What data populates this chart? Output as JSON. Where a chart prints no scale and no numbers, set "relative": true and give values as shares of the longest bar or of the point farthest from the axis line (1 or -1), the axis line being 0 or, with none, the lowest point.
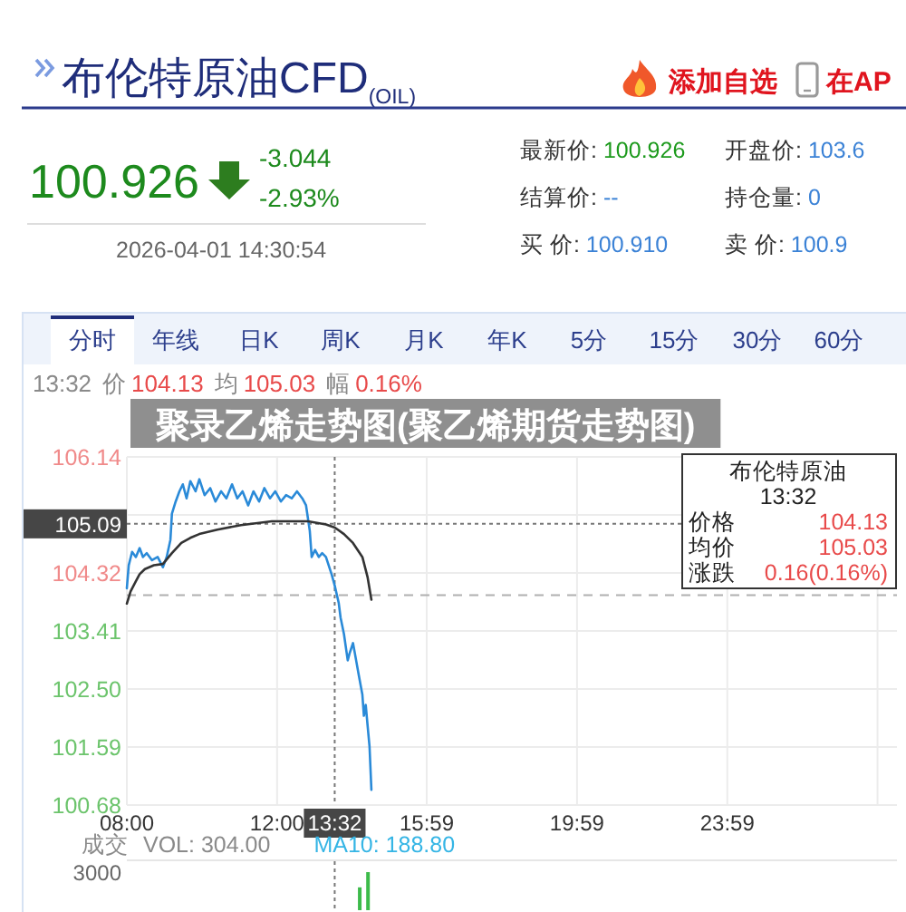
{
  "chart_data": [
    {
      "type": "other",
      "title": "布伦特原油CFD$_{(OIL)}$",
      "annotations": [
        "100.926",
        "-3.044",
        "-2.93%",
        "2026-04-01 14:30:54",
        "添加自选",
        "在AP",
        "最新价: 100.926",
        "结算价: --",
        "买 价: 100.910",
        "开盘价: 103.6",
        "持仓量: 0",
        "卖 价: 100.9"
      ]
    },
    {
      "type": "line",
      "title": "聚录乙烯走势图(聚乙烯期货走势图)",
      "series": [
        {
          "color": "#2a8ad8",
          "x": [
            8.0,
            8.05,
            8.14,
            8.24,
            8.34,
            8.43,
            8.53,
            8.67,
            8.82,
            8.96,
            9.06,
            9.16,
            9.2,
            9.3,
            9.4,
            9.49,
            9.59,
            9.69,
            9.83,
            9.93,
            10.07,
            10.22,
            10.36,
            10.51,
            10.65,
            10.8,
            10.94,
            11.08,
            11.23,
            11.37,
            11.52,
            11.66,
            11.81,
            11.95,
            12.1,
            12.24,
            12.39,
            12.53,
            12.67,
            12.77,
            12.87,
            12.92,
            13.01,
            13.11,
            13.2,
            13.3,
            13.45,
            13.53,
            13.64,
            13.69,
            13.78,
            13.88,
            13.93,
            14.02,
            14.07,
            14.17,
            14.27,
            14.31,
            14.36,
            14.41,
            14.46,
            14.51
          ],
          "values": [
            104.08,
            104.44,
            104.65,
            104.57,
            104.71,
            104.57,
            104.63,
            104.52,
            104.57,
            104.41,
            104.57,
            104.84,
            105.25,
            105.44,
            105.6,
            105.71,
            105.49,
            105.76,
            105.6,
            105.79,
            105.54,
            105.65,
            105.44,
            105.6,
            105.49,
            105.71,
            105.49,
            105.6,
            105.38,
            105.6,
            105.44,
            105.65,
            105.49,
            105.6,
            105.44,
            105.54,
            105.49,
            105.6,
            105.49,
            105.38,
            104.98,
            104.57,
            104.68,
            104.57,
            104.63,
            104.57,
            104.3,
            104.13,
            103.85,
            103.62,
            103.36,
            102.95,
            103.06,
            103.22,
            103.06,
            102.73,
            102.41,
            102.08,
            102.25,
            101.92,
            101.6,
            100.92
          ]
        },
        {
          "color": "#333333",
          "x": [
            8.0,
            8.1,
            8.24,
            8.34,
            8.48,
            8.72,
            8.96,
            9.2,
            9.45,
            9.69,
            9.93,
            10.41,
            11.04,
            11.86,
            12.82,
            13.3,
            13.54,
            13.78,
            14.02,
            14.27,
            14.41,
            14.51
          ],
          "values": [
            103.84,
            104.03,
            104.19,
            104.3,
            104.38,
            104.44,
            104.46,
            104.63,
            104.79,
            104.87,
            104.93,
            105.0,
            105.07,
            105.13,
            105.13,
            105.08,
            105.03,
            104.93,
            104.79,
            104.57,
            104.25,
            103.9
          ]
        }
      ],
      "xlim": [
        8,
        28.5
      ],
      "ylim": [
        100.68,
        106.14
      ],
      "xticks": [
        {
          "value": 8,
          "label": "08:00"
        },
        {
          "value": 12,
          "label": "12:00"
        },
        {
          "value": 15.9833,
          "label": "15:59"
        },
        {
          "value": 19.9833,
          "label": "19:59"
        },
        {
          "value": 23.9833,
          "label": "23:59"
        },
        {
          "value": 27.9833,
          "label": null
        }
      ],
      "yticks": [
        100.68,
        101.59,
        {
          "value": 102.5,
          "label": "102.50"
        },
        103.41,
        104.32,
        {
          "value": 105.23,
          "label": null
        },
        106.14
      ],
      "grid": true,
      "ref_lines": [
        {
          "axis": "y",
          "value": 103.97,
          "line_style": "dashed"
        },
        {
          "axis": "x",
          "value": 13.5333,
          "line_style": "dotted"
        },
        {
          "axis": "y",
          "value": 105.09,
          "label": "105.09",
          "line_style": "dotted"
        }
      ],
      "annotations": [
        "分时",
        "年线",
        "日K",
        "周K",
        "月K",
        "年K",
        "5分",
        "15分",
        "30分",
        "60分",
        "13:32",
        "价",
        "104.13",
        "均",
        "105.03",
        "幅",
        "0.16%",
        "布伦特原油",
        "13:32",
        "价格",
        "104.13",
        "均价",
        "105.03",
        "涨跌",
        "0.16(0.16%)",
        "13:32"
      ]
    },
    {
      "type": "bar",
      "title": "成交",
      "x": [
        14.2,
        14.42
      ],
      "values": [
        0.6,
        1
      ],
      "color": "#3dbb4a",
      "relative": true,
      "xlim": [
        8,
        28.5
      ],
      "ref_lines": [
        {
          "axis": "x",
          "value": 13.5333,
          "line_style": "dotted"
        }
      ],
      "annotations": [
        "VOL: 304.00",
        "MA10: 188.80",
        "3000"
      ]
    }
  ]
}
